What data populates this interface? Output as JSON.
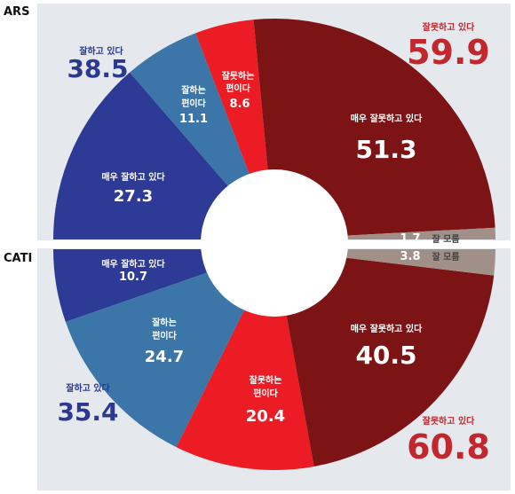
{
  "chart_data": [
    {
      "type": "pie",
      "title": "ARS",
      "categories": [
        "잘하고 있다",
        "잘못하고 있다"
      ],
      "totals": {
        "good": 38.5,
        "bad": 59.9
      },
      "series": [
        {
          "name": "매우 잘하고 있다",
          "value": 27.3,
          "color": "#2d3a96",
          "text": "27.3"
        },
        {
          "name": "잘하는 편이다",
          "value": 11.1,
          "color": "#3c76a8",
          "text": "11.1"
        },
        {
          "name": "잘못하는 편이다",
          "value": 8.6,
          "color": "#ec1c24",
          "text": "8.6"
        },
        {
          "name": "매우 잘못하고 있다",
          "value": 51.3,
          "color": "#7c1416",
          "text": "51.3"
        },
        {
          "name": "잘 모름",
          "value": 1.7,
          "color": "#a19087",
          "text": "1.7"
        }
      ]
    },
    {
      "type": "pie",
      "title": "CATI",
      "categories": [
        "잘하고 있다",
        "잘못하고 있다"
      ],
      "totals": {
        "good": 35.4,
        "bad": 60.8
      },
      "series": [
        {
          "name": "매우 잘하고 있다",
          "value": 10.7,
          "color": "#2d3a96",
          "text": "10.7"
        },
        {
          "name": "잘하는 편이다",
          "value": 24.7,
          "color": "#3c76a8",
          "text": "24.7"
        },
        {
          "name": "잘못하는 편이다",
          "value": 20.4,
          "color": "#ec1c24",
          "text": "20.4"
        },
        {
          "name": "매우 잘못하고 있다",
          "value": 40.5,
          "color": "#7c1416",
          "text": "40.5"
        },
        {
          "name": "잘 모름",
          "value": 3.8,
          "color": "#a19087",
          "text": "3.8"
        }
      ]
    }
  ],
  "labels": {
    "ars": "ARS",
    "cati": "CATI",
    "good_total": "잘하고 있다",
    "bad_total": "잘못하고 있다",
    "ars_good_total": "38.5",
    "ars_bad_total": "59.9",
    "cati_good_total": "35.4",
    "cati_bad_total": "60.8",
    "very_good": "매우 잘하고 있다",
    "good_line1": "잘하는",
    "good_line2": "편이다",
    "bad_line1": "잘못하는",
    "bad_line2": "편이다",
    "very_bad": "매우 잘못하고 있다",
    "dont_know": "잘 모름"
  },
  "colors": {
    "background": "#e5e8ec",
    "good_total": "#2b3990",
    "bad_total": "#c1272d"
  }
}
